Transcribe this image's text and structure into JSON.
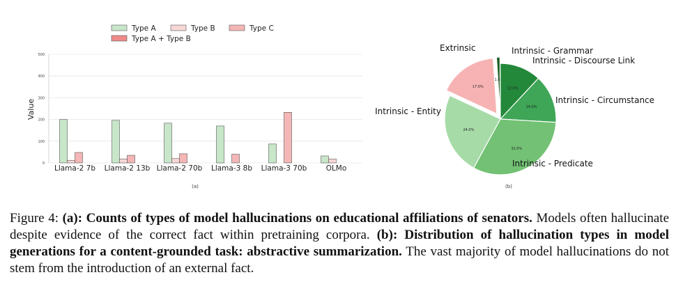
{
  "chart_data": [
    {
      "type": "bar",
      "panel_label": "(a)",
      "xlabel": "",
      "ylabel": "Value",
      "ylim": [
        0,
        500
      ],
      "yticks": [
        "0",
        "100",
        "200",
        "300",
        "400",
        "500"
      ],
      "grid": true,
      "legend_position": "top",
      "categories": [
        "Llama-2 7b",
        "Llama-2 13b",
        "Llama-2 70b",
        "Llama-3 8b",
        "Llama-3 70b",
        "OLMo"
      ],
      "series": [
        {
          "name": "Type A",
          "color": "#c8e6c9",
          "values": [
            200,
            196,
            183,
            170,
            87,
            32
          ]
        },
        {
          "name": "Type B",
          "color": "#f8d7d7",
          "values": [
            12,
            18,
            20,
            0,
            0,
            18
          ]
        },
        {
          "name": "Type C",
          "color": "#f4b6b6",
          "values": [
            48,
            35,
            42,
            40,
            233,
            0
          ]
        },
        {
          "name": "Type A + Type B",
          "color": "#ef8a8a",
          "values": [
            0,
            0,
            0,
            0,
            0,
            0
          ]
        }
      ]
    },
    {
      "type": "pie",
      "panel_label": "(b)",
      "slices": [
        {
          "label": "Extrinsic",
          "value": 17.0,
          "pct_label": "17.0%",
          "color": "#f7b3b3",
          "explode": true
        },
        {
          "label": "Intrinsic - Grammar",
          "value": 1.0,
          "pct_label": "1.0%",
          "color": "#1b5e20",
          "explode": true
        },
        {
          "label": "Intrinsic - Discourse Link",
          "value": 12.0,
          "pct_label": "12.0%",
          "color": "#23883a",
          "explode": false
        },
        {
          "label": "Intrinsic - Circumstance",
          "value": 14.0,
          "pct_label": "14.0%",
          "color": "#3fa657",
          "explode": false
        },
        {
          "label": "Intrinsic - Predicate",
          "value": 32.0,
          "pct_label": "32.0%",
          "color": "#72c174",
          "explode": false
        },
        {
          "label": "Intrinsic - Entity",
          "value": 24.0,
          "pct_label": "24.0%",
          "color": "#a6dba8",
          "explode": false
        }
      ]
    }
  ],
  "caption": {
    "fig_prefix": "Figure 4: ",
    "a_tag": "(a)",
    "a_bold": ": Counts of types of model hallucinations on educational affiliations of senators.",
    "a_text": " Models often hallucinate despite evidence of the correct fact within pretraining corpora. ",
    "b_tag": "(b)",
    "b_bold": ": Distribution of hallucination types in model generations for a content-grounded task: abstractive summarization.",
    "b_text": " The vast majority of model hallucinations do not stem from the introduction of an external fact."
  }
}
